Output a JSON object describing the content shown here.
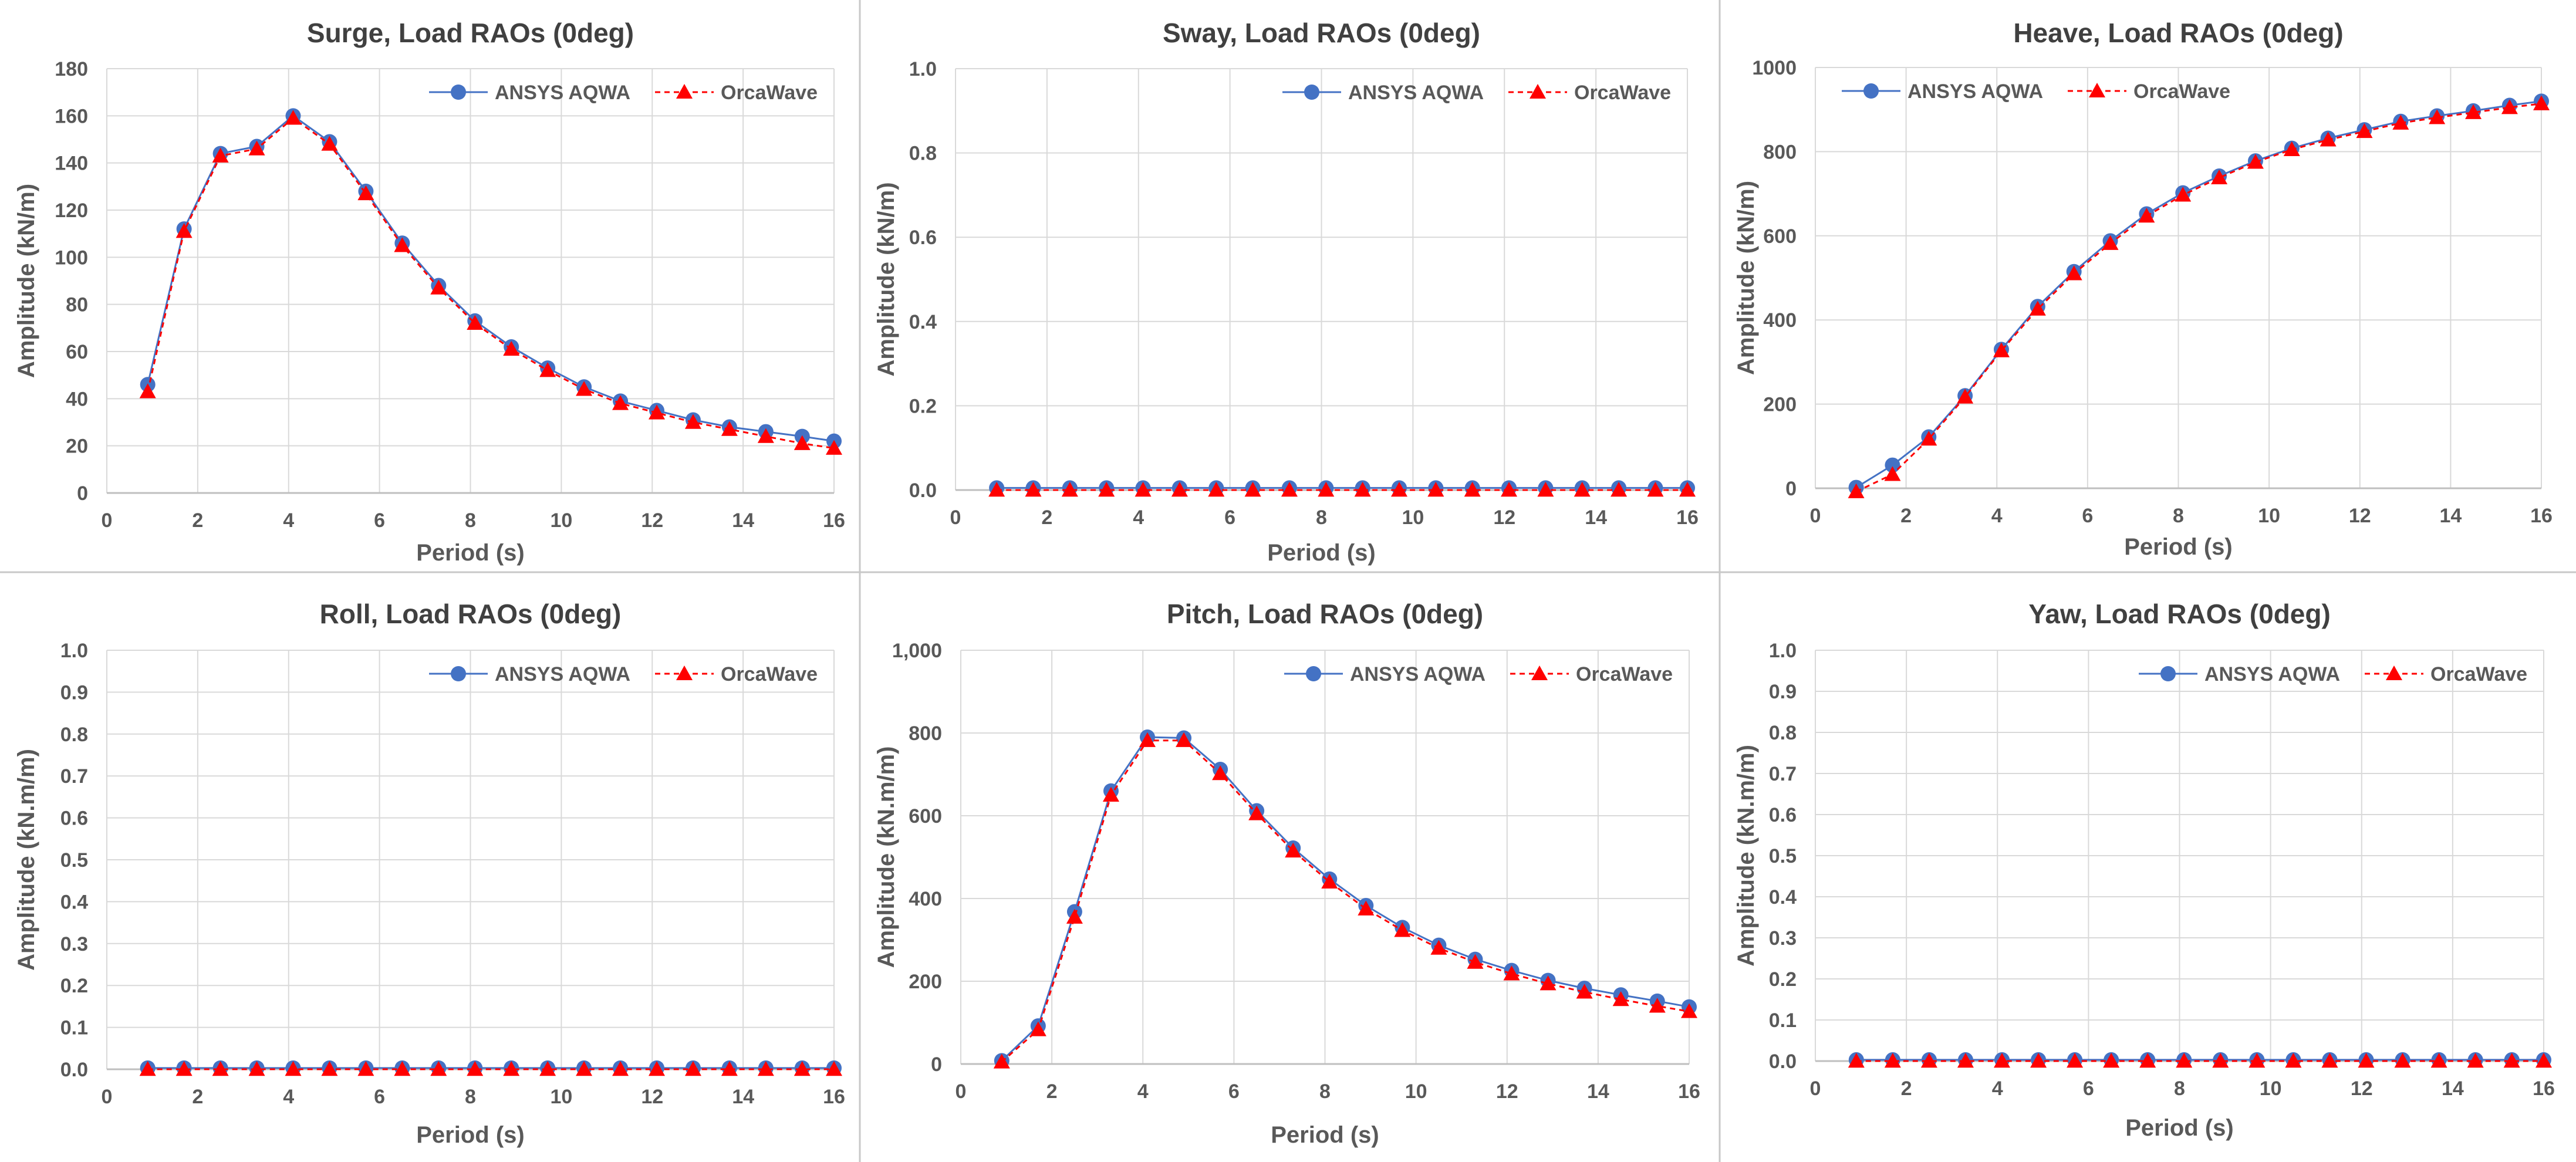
{
  "figure": {
    "colors": {
      "aqwa": "#4472C4",
      "orca": "#FF0000",
      "grid": "#D9D9D9",
      "axis": "#BFBFBF",
      "divider": "#C8C8C8",
      "text": "#595959",
      "title": "#404040"
    }
  },
  "chart_data": [
    {
      "type": "line",
      "title": "Surge, Load RAOs (0deg)",
      "xlabel": "Period (s)",
      "ylabel": "Amplitude (kN/m)",
      "xlim": [
        0,
        16
      ],
      "ylim": [
        0,
        180
      ],
      "xticks": [
        0,
        2,
        4,
        6,
        8,
        10,
        12,
        14,
        16
      ],
      "xtick_labels": [
        "0",
        "2",
        "4",
        "6",
        "8",
        "10",
        "12",
        "14",
        "16"
      ],
      "yticks": [
        0,
        20,
        40,
        60,
        80,
        100,
        120,
        140,
        160,
        180
      ],
      "ytick_labels": [
        "0",
        "20",
        "40",
        "60",
        "80",
        "100",
        "120",
        "140",
        "160",
        "180"
      ],
      "grid": true,
      "legend_position": "top-right",
      "x": [
        0.9,
        1.7,
        2.5,
        3.3,
        4.1,
        4.9,
        5.7,
        6.5,
        7.3,
        8.1,
        8.9,
        9.7,
        10.5,
        11.3,
        12.1,
        12.9,
        13.7,
        14.5,
        15.3,
        16.0
      ],
      "series": [
        {
          "name": "ANSYS AQWA",
          "values": [
            46,
            112,
            144,
            147,
            160,
            149,
            128,
            106,
            88,
            73,
            62,
            53,
            45,
            39,
            35,
            31,
            28,
            26,
            24,
            22
          ]
        },
        {
          "name": "OrcaWave",
          "values": [
            43,
            111,
            143,
            146,
            159,
            148,
            127,
            105,
            87,
            72,
            61,
            52,
            44,
            38,
            34,
            30,
            27,
            24,
            21,
            19
          ]
        }
      ]
    },
    {
      "type": "line",
      "title": "Sway, Load RAOs (0deg)",
      "xlabel": "Period (s)",
      "ylabel": "Amplitude (kN/m)",
      "xlim": [
        0,
        16
      ],
      "ylim": [
        0,
        1
      ],
      "xticks": [
        0,
        2,
        4,
        6,
        8,
        10,
        12,
        14,
        16
      ],
      "xtick_labels": [
        "0",
        "2",
        "4",
        "6",
        "8",
        "10",
        "12",
        "14",
        "16"
      ],
      "yticks": [
        0,
        0.2,
        0.4,
        0.6,
        0.8,
        1.0
      ],
      "ytick_labels": [
        "0.0",
        "0.2",
        "0.4",
        "0.6",
        "0.8",
        "1.0"
      ],
      "grid": true,
      "legend_position": "top-right",
      "x": [
        0.9,
        1.7,
        2.5,
        3.3,
        4.1,
        4.9,
        5.7,
        6.5,
        7.3,
        8.1,
        8.9,
        9.7,
        10.5,
        11.3,
        12.1,
        12.9,
        13.7,
        14.5,
        15.3,
        16.0
      ],
      "series": [
        {
          "name": "ANSYS AQWA",
          "values": [
            0.005,
            0.005,
            0.005,
            0.005,
            0.005,
            0.005,
            0.005,
            0.005,
            0.005,
            0.005,
            0.005,
            0.005,
            0.005,
            0.005,
            0.005,
            0.005,
            0.005,
            0.005,
            0.005,
            0.005
          ]
        },
        {
          "name": "OrcaWave",
          "values": [
            0,
            0,
            0,
            0,
            0,
            0,
            0,
            0,
            0,
            0,
            0,
            0,
            0,
            0,
            0,
            0,
            0,
            0,
            0,
            0
          ]
        }
      ]
    },
    {
      "type": "line",
      "title": "Heave, Load RAOs (0deg)",
      "xlabel": "Period (s)",
      "ylabel": "Amplitude (kN/m)",
      "xlim": [
        0,
        16
      ],
      "ylim": [
        0,
        1000
      ],
      "xticks": [
        0,
        2,
        4,
        6,
        8,
        10,
        12,
        14,
        16
      ],
      "xtick_labels": [
        "0",
        "2",
        "4",
        "6",
        "8",
        "10",
        "12",
        "14",
        "16"
      ],
      "yticks": [
        0,
        200,
        400,
        600,
        800,
        1000
      ],
      "ytick_labels": [
        "0",
        "200",
        "400",
        "600",
        "800",
        "1000"
      ],
      "grid": true,
      "legend_position": "top-left",
      "x": [
        0.9,
        1.7,
        2.5,
        3.3,
        4.1,
        4.9,
        5.7,
        6.5,
        7.3,
        8.1,
        8.9,
        9.7,
        10.5,
        11.3,
        12.1,
        12.9,
        13.7,
        14.5,
        15.3,
        16.0
      ],
      "series": [
        {
          "name": "ANSYS AQWA",
          "values": [
            2,
            55,
            122,
            220,
            330,
            432,
            515,
            588,
            652,
            702,
            742,
            778,
            808,
            832,
            852,
            872,
            885,
            897,
            910,
            920
          ]
        },
        {
          "name": "OrcaWave",
          "values": [
            -8,
            33,
            117,
            217,
            327,
            426,
            510,
            582,
            647,
            697,
            738,
            775,
            805,
            828,
            848,
            868,
            881,
            893,
            905,
            914
          ]
        }
      ]
    },
    {
      "type": "line",
      "title": "Roll, Load RAOs (0deg)",
      "xlabel": "Period (s)",
      "ylabel": "Amplitude (kN.m/m)",
      "xlim": [
        0,
        16
      ],
      "ylim": [
        0,
        1
      ],
      "xticks": [
        0,
        2,
        4,
        6,
        8,
        10,
        12,
        14,
        16
      ],
      "xtick_labels": [
        "0",
        "2",
        "4",
        "6",
        "8",
        "10",
        "12",
        "14",
        "16"
      ],
      "yticks": [
        0,
        0.1,
        0.2,
        0.3,
        0.4,
        0.5,
        0.6,
        0.7,
        0.8,
        0.9,
        1.0
      ],
      "ytick_labels": [
        "0.0",
        "0.1",
        "0.2",
        "0.3",
        "0.4",
        "0.5",
        "0.6",
        "0.7",
        "0.8",
        "0.9",
        "1.0"
      ],
      "grid": true,
      "legend_position": "top-right",
      "x": [
        0.9,
        1.7,
        2.5,
        3.3,
        4.1,
        4.9,
        5.7,
        6.5,
        7.3,
        8.1,
        8.9,
        9.7,
        10.5,
        11.3,
        12.1,
        12.9,
        13.7,
        14.5,
        15.3,
        16.0
      ],
      "series": [
        {
          "name": "ANSYS AQWA",
          "values": [
            0.003,
            0.003,
            0.003,
            0.003,
            0.003,
            0.003,
            0.003,
            0.003,
            0.003,
            0.003,
            0.003,
            0.003,
            0.003,
            0.003,
            0.003,
            0.003,
            0.003,
            0.003,
            0.003,
            0.003
          ]
        },
        {
          "name": "OrcaWave",
          "values": [
            0,
            0,
            0,
            0,
            0,
            0,
            0,
            0,
            0,
            0,
            0,
            0,
            0,
            0,
            0,
            0,
            0,
            0,
            0,
            0
          ]
        }
      ]
    },
    {
      "type": "line",
      "title": "Pitch, Load RAOs (0deg)",
      "xlabel": "Period (s)",
      "ylabel": "Amplitude (kN.m/m)",
      "xlim": [
        0,
        16
      ],
      "ylim": [
        0,
        1000
      ],
      "xticks": [
        0,
        2,
        4,
        6,
        8,
        10,
        12,
        14,
        16
      ],
      "xtick_labels": [
        "0",
        "2",
        "4",
        "6",
        "8",
        "10",
        "12",
        "14",
        "16"
      ],
      "yticks": [
        0,
        200,
        400,
        600,
        800,
        1000
      ],
      "ytick_labels": [
        "0",
        "200",
        "400",
        "600",
        "800",
        "1,000"
      ],
      "grid": true,
      "legend_position": "top-right",
      "x": [
        0.9,
        1.7,
        2.5,
        3.3,
        4.1,
        4.9,
        5.7,
        6.5,
        7.3,
        8.1,
        8.9,
        9.7,
        10.5,
        11.3,
        12.1,
        12.9,
        13.7,
        14.5,
        15.3,
        16.0
      ],
      "series": [
        {
          "name": "ANSYS AQWA",
          "values": [
            8,
            92,
            368,
            660,
            790,
            788,
            712,
            612,
            522,
            447,
            383,
            330,
            287,
            253,
            226,
            202,
            183,
            167,
            152,
            138
          ]
        },
        {
          "name": "OrcaWave",
          "values": [
            5,
            83,
            355,
            650,
            782,
            782,
            702,
            605,
            515,
            440,
            375,
            323,
            280,
            246,
            218,
            194,
            174,
            156,
            140,
            127
          ]
        }
      ]
    },
    {
      "type": "line",
      "title": "Yaw, Load RAOs (0deg)",
      "xlabel": "Period (s)",
      "ylabel": "Amplitude (kN.m/m)",
      "xlim": [
        0,
        16
      ],
      "ylim": [
        0,
        1
      ],
      "xticks": [
        0,
        2,
        4,
        6,
        8,
        10,
        12,
        14,
        16
      ],
      "xtick_labels": [
        "0",
        "2",
        "4",
        "6",
        "8",
        "10",
        "12",
        "14",
        "16"
      ],
      "yticks": [
        0,
        0.1,
        0.2,
        0.3,
        0.4,
        0.5,
        0.6,
        0.7,
        0.8,
        0.9,
        1.0
      ],
      "ytick_labels": [
        "0.0",
        "0.1",
        "0.2",
        "0.3",
        "0.4",
        "0.5",
        "0.6",
        "0.7",
        "0.8",
        "0.9",
        "1.0"
      ],
      "grid": true,
      "legend_position": "top-right",
      "x": [
        0.9,
        1.7,
        2.5,
        3.3,
        4.1,
        4.9,
        5.7,
        6.5,
        7.3,
        8.1,
        8.9,
        9.7,
        10.5,
        11.3,
        12.1,
        12.9,
        13.7,
        14.5,
        15.3,
        16.0
      ],
      "series": [
        {
          "name": "ANSYS AQWA",
          "values": [
            0.003,
            0.003,
            0.003,
            0.003,
            0.003,
            0.003,
            0.003,
            0.003,
            0.003,
            0.003,
            0.003,
            0.003,
            0.003,
            0.003,
            0.003,
            0.003,
            0.003,
            0.003,
            0.003,
            0.003
          ]
        },
        {
          "name": "OrcaWave",
          "values": [
            0,
            0,
            0,
            0,
            0,
            0,
            0,
            0,
            0,
            0,
            0,
            0,
            0,
            0,
            0,
            0,
            0,
            0,
            0,
            0
          ]
        }
      ]
    }
  ]
}
